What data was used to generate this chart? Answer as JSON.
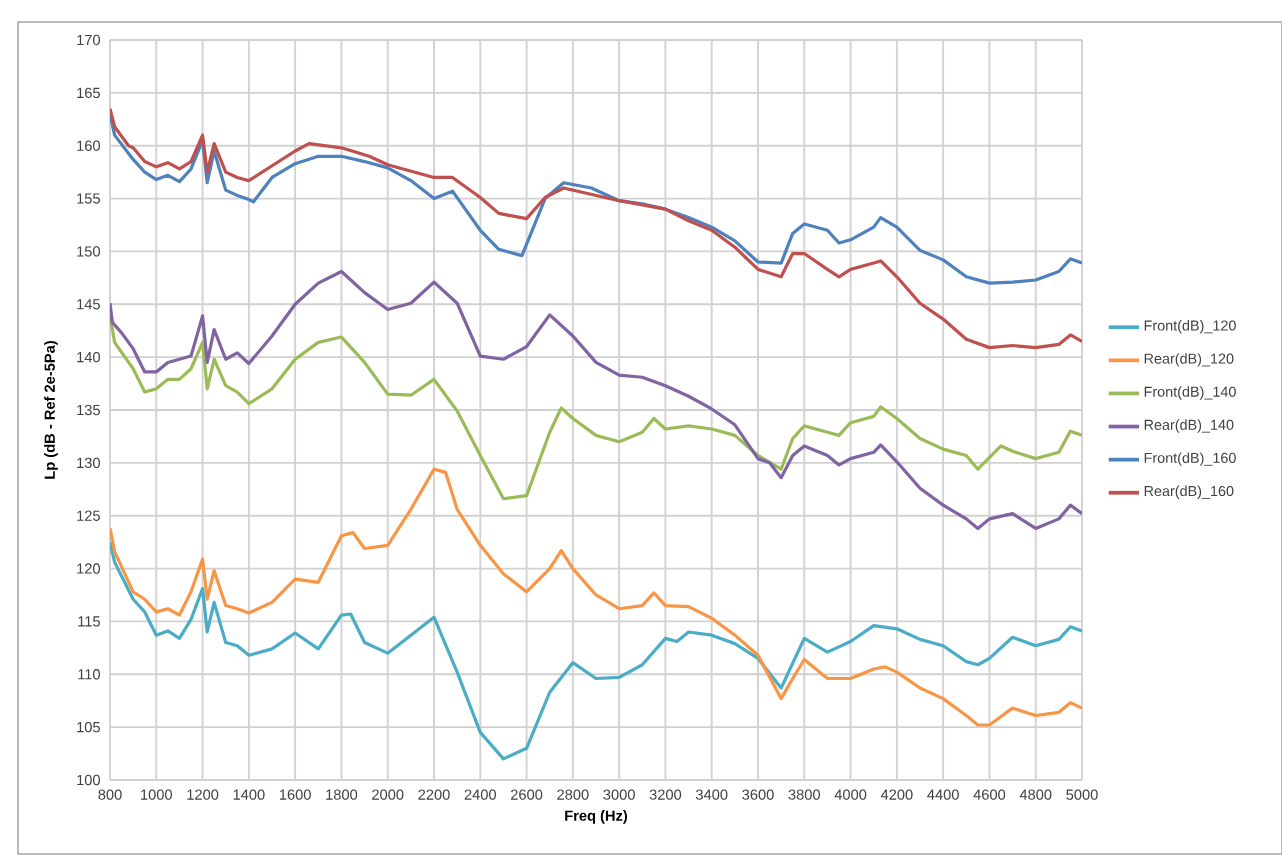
{
  "chart_data": {
    "type": "line",
    "xlabel": "Freq (Hz)",
    "ylabel": "Lp (dB - Ref 2e-5Pa)",
    "xlim": [
      800,
      5000
    ],
    "ylim": [
      100,
      170
    ],
    "xticks": [
      800,
      1000,
      1200,
      1400,
      1600,
      1800,
      2000,
      2200,
      2400,
      2600,
      2800,
      3000,
      3200,
      3400,
      3600,
      3800,
      4000,
      4200,
      4400,
      4600,
      4800,
      5000
    ],
    "yticks": [
      100,
      105,
      110,
      115,
      120,
      125,
      130,
      135,
      140,
      145,
      150,
      155,
      160,
      165,
      170
    ],
    "grid": true,
    "legend": "right",
    "marker": "none",
    "line_style": "solid",
    "series": [
      {
        "name": "Front(dB)_120",
        "color": "#4bacc6",
        "x": [
          800,
          820,
          900,
          950,
          1000,
          1050,
          1100,
          1150,
          1200,
          1220,
          1250,
          1300,
          1350,
          1400,
          1500,
          1600,
          1700,
          1800,
          1840,
          1900,
          2000,
          2100,
          2200,
          2300,
          2400,
          2500,
          2600,
          2700,
          2800,
          2900,
          3000,
          3100,
          3200,
          3250,
          3300,
          3400,
          3500,
          3600,
          3700,
          3800,
          3900,
          4000,
          4100,
          4200,
          4300,
          4400,
          4500,
          4550,
          4600,
          4700,
          4800,
          4900,
          4950,
          5000
        ],
        "values": [
          122.5,
          120.6,
          117.1,
          115.9,
          113.7,
          114.1,
          113.4,
          115.2,
          118.1,
          114,
          116.8,
          113,
          112.7,
          111.8,
          112.4,
          113.9,
          112.4,
          115.6,
          115.7,
          113,
          112,
          113.7,
          115.4,
          110.2,
          104.5,
          102,
          103,
          108.3,
          111.1,
          109.6,
          109.7,
          110.9,
          113.4,
          113.1,
          114,
          113.7,
          112.9,
          111.5,
          108.7,
          113.4,
          112.1,
          113.1,
          114.6,
          114.3,
          113.3,
          112.7,
          111.2,
          110.9,
          111.5,
          113.5,
          112.7,
          113.3,
          114.5,
          114.1
        ]
      },
      {
        "name": "Rear(dB)_120",
        "color": "#f79646",
        "x": [
          800,
          820,
          900,
          950,
          1000,
          1050,
          1100,
          1150,
          1200,
          1220,
          1250,
          1300,
          1350,
          1400,
          1500,
          1600,
          1700,
          1800,
          1850,
          1900,
          2000,
          2100,
          2200,
          2250,
          2300,
          2400,
          2500,
          2600,
          2700,
          2750,
          2800,
          2900,
          3000,
          3100,
          3150,
          3200,
          3300,
          3400,
          3500,
          3600,
          3700,
          3750,
          3800,
          3900,
          4000,
          4100,
          4150,
          4200,
          4300,
          4400,
          4500,
          4550,
          4600,
          4700,
          4800,
          4900,
          4950,
          5000
        ],
        "values": [
          123.8,
          121.6,
          117.8,
          117.1,
          115.9,
          116.2,
          115.6,
          117.8,
          120.9,
          117.1,
          119.8,
          116.5,
          116.2,
          115.8,
          116.8,
          119,
          118.7,
          123.1,
          123.4,
          121.9,
          122.2,
          125.6,
          129.4,
          129.1,
          125.6,
          122.2,
          119.5,
          117.8,
          120,
          121.7,
          120,
          117.5,
          116.2,
          116.5,
          117.7,
          116.5,
          116.4,
          115.3,
          113.7,
          111.8,
          107.7,
          109.6,
          111.4,
          109.6,
          109.6,
          110.5,
          110.7,
          110.2,
          108.7,
          107.7,
          106.1,
          105.2,
          105.2,
          106.8,
          106.1,
          106.4,
          107.3,
          106.8
        ]
      },
      {
        "name": "Front(dB)_140",
        "color": "#9bbb59",
        "x": [
          800,
          820,
          900,
          950,
          1000,
          1050,
          1100,
          1150,
          1200,
          1220,
          1250,
          1300,
          1350,
          1400,
          1500,
          1600,
          1700,
          1800,
          1900,
          2000,
          2100,
          2200,
          2300,
          2400,
          2500,
          2600,
          2700,
          2750,
          2800,
          2900,
          3000,
          3100,
          3150,
          3200,
          3300,
          3400,
          3500,
          3600,
          3700,
          3750,
          3800,
          3900,
          3950,
          4000,
          4100,
          4130,
          4200,
          4300,
          4400,
          4500,
          4550,
          4650,
          4700,
          4800,
          4900,
          4950,
          5000
        ],
        "values": [
          143.9,
          141.4,
          138.9,
          136.7,
          137,
          137.9,
          137.9,
          138.9,
          141.4,
          137,
          139.8,
          137.3,
          136.7,
          135.6,
          137,
          139.8,
          141.4,
          141.9,
          139.5,
          136.5,
          136.4,
          137.9,
          134.9,
          130.7,
          126.6,
          126.9,
          132.9,
          135.2,
          134.2,
          132.6,
          132,
          132.9,
          134.2,
          133.2,
          133.5,
          133.2,
          132.6,
          130.7,
          129.4,
          132.3,
          133.5,
          132.9,
          132.6,
          133.8,
          134.4,
          135.3,
          134.2,
          132.3,
          131.3,
          130.7,
          129.4,
          131.6,
          131.1,
          130.4,
          131,
          133,
          132.6
        ]
      },
      {
        "name": "Rear(dB)_140",
        "color": "#8064a2",
        "x": [
          800,
          810,
          850,
          900,
          950,
          1000,
          1050,
          1100,
          1150,
          1200,
          1220,
          1250,
          1300,
          1350,
          1400,
          1500,
          1600,
          1700,
          1800,
          1900,
          2000,
          2100,
          2200,
          2300,
          2400,
          2500,
          2600,
          2700,
          2800,
          2900,
          3000,
          3100,
          3200,
          3300,
          3400,
          3500,
          3600,
          3650,
          3700,
          3750,
          3800,
          3900,
          3950,
          4000,
          4100,
          4130,
          4200,
          4300,
          4400,
          4500,
          4550,
          4600,
          4700,
          4800,
          4900,
          4950,
          5000
        ],
        "values": [
          145.1,
          143.3,
          142.3,
          140.8,
          138.6,
          138.6,
          139.5,
          139.8,
          140.1,
          143.9,
          139.5,
          142.6,
          139.8,
          140.4,
          139.4,
          142,
          145,
          147,
          148.1,
          146.1,
          144.5,
          145.1,
          147.1,
          145.1,
          140.1,
          139.8,
          141,
          144,
          142,
          139.5,
          138.3,
          138.1,
          137.3,
          136.3,
          135.1,
          133.6,
          130.4,
          130,
          128.6,
          130.7,
          131.6,
          130.7,
          129.8,
          130.4,
          131,
          131.7,
          130.1,
          127.6,
          126,
          124.7,
          123.8,
          124.7,
          125.2,
          123.8,
          124.7,
          126,
          125.2
        ]
      },
      {
        "name": "Front(dB)_160",
        "color": "#4f81bd",
        "x": [
          800,
          820,
          900,
          950,
          1000,
          1050,
          1100,
          1150,
          1200,
          1220,
          1250,
          1300,
          1350,
          1400,
          1420,
          1500,
          1600,
          1700,
          1800,
          1900,
          2000,
          2100,
          2200,
          2280,
          2400,
          2480,
          2580,
          2680,
          2760,
          2880,
          3000,
          3100,
          3200,
          3300,
          3400,
          3500,
          3600,
          3700,
          3750,
          3800,
          3900,
          3950,
          4000,
          4100,
          4130,
          4200,
          4300,
          4400,
          4500,
          4600,
          4700,
          4800,
          4900,
          4950,
          5000
        ],
        "values": [
          163,
          161,
          158.7,
          157.5,
          156.8,
          157.2,
          156.6,
          157.8,
          160.5,
          156.5,
          159.5,
          155.8,
          155.3,
          154.9,
          154.7,
          157,
          158.3,
          159,
          159,
          158.5,
          157.9,
          156.7,
          155,
          155.7,
          152,
          150.2,
          149.6,
          155,
          156.5,
          156,
          154.8,
          154.5,
          154,
          153.2,
          152.3,
          151,
          149,
          148.9,
          151.7,
          152.6,
          152,
          150.8,
          151.1,
          152.3,
          153.2,
          152.3,
          150.1,
          149.2,
          147.6,
          147,
          147.1,
          147.3,
          148.1,
          149.3,
          148.9
        ]
      },
      {
        "name": "Rear(dB)_160",
        "color": "#c0504d",
        "x": [
          800,
          820,
          880,
          900,
          950,
          1000,
          1050,
          1100,
          1150,
          1200,
          1220,
          1250,
          1300,
          1350,
          1400,
          1600,
          1660,
          1800,
          1920,
          2000,
          2200,
          2280,
          2400,
          2480,
          2600,
          2680,
          2760,
          3000,
          3200,
          3300,
          3400,
          3500,
          3600,
          3700,
          3750,
          3800,
          3900,
          3950,
          4000,
          4100,
          4130,
          4200,
          4300,
          4400,
          4500,
          4600,
          4700,
          4800,
          4900,
          4950,
          5000
        ],
        "values": [
          163.5,
          161.8,
          160,
          159.8,
          158.5,
          158,
          158.4,
          157.8,
          158.5,
          161,
          157.5,
          160.2,
          157.5,
          157,
          156.7,
          159.5,
          160.2,
          159.8,
          159,
          158.2,
          157,
          157,
          155.1,
          153.6,
          153.1,
          155.1,
          156,
          154.8,
          154,
          152.9,
          152,
          150.4,
          148.3,
          147.6,
          149.8,
          149.8,
          148.3,
          147.6,
          148.3,
          148.9,
          149.1,
          147.6,
          145.1,
          143.6,
          141.7,
          140.9,
          141.1,
          140.9,
          141.2,
          142.1,
          141.5
        ]
      }
    ]
  }
}
